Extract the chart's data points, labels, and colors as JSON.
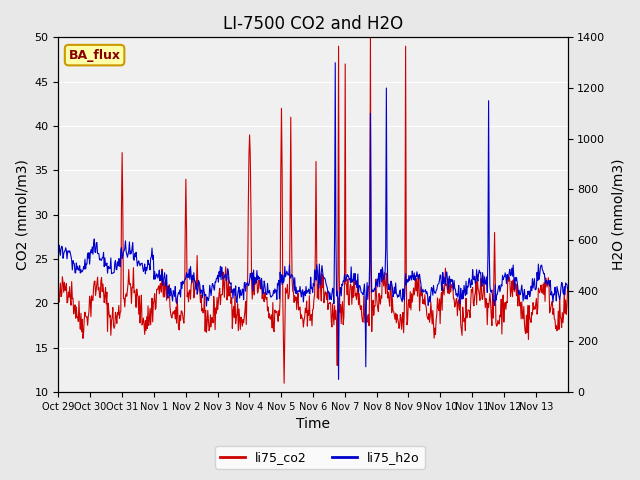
{
  "title": "LI-7500 CO2 and H2O",
  "xlabel": "Time",
  "ylabel_left": "CO2 (mmol/m3)",
  "ylabel_right": "H2O (mmol/m3)",
  "ylim_left": [
    10,
    50
  ],
  "ylim_right": [
    0,
    1400
  ],
  "xtick_labels": [
    "Oct 29",
    "Oct 30",
    "Oct 31",
    "Nov 1",
    "Nov 2",
    "Nov 3",
    "Nov 4",
    "Nov 5",
    "Nov 6",
    "Nov 7",
    "Nov 8",
    "Nov 9",
    "Nov 10",
    "Nov 11",
    "Nov 12",
    "Nov 13"
  ],
  "color_co2": "#cc0000",
  "color_h2o": "#0000cc",
  "legend_label_co2": "li75_co2",
  "legend_label_h2o": "li75_h2o",
  "annotation_text": "BA_flux",
  "annotation_color_bg": "#ffffaa",
  "annotation_color_border": "#cc9900",
  "annotation_color_text": "#880000",
  "background_color": "#e8e8e8",
  "plot_bg_color": "#f0f0f0",
  "title_fontsize": 12,
  "axis_fontsize": 10,
  "tick_fontsize": 8
}
